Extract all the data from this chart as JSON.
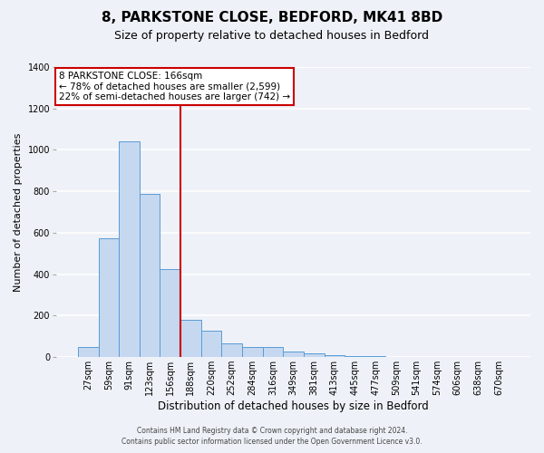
{
  "title": "8, PARKSTONE CLOSE, BEDFORD, MK41 8BD",
  "subtitle": "Size of property relative to detached houses in Bedford",
  "xlabel": "Distribution of detached houses by size in Bedford",
  "ylabel": "Number of detached properties",
  "bar_labels": [
    "27sqm",
    "59sqm",
    "91sqm",
    "123sqm",
    "156sqm",
    "188sqm",
    "220sqm",
    "252sqm",
    "284sqm",
    "316sqm",
    "349sqm",
    "381sqm",
    "413sqm",
    "445sqm",
    "477sqm",
    "509sqm",
    "541sqm",
    "574sqm",
    "606sqm",
    "638sqm",
    "670sqm"
  ],
  "bar_values": [
    50,
    575,
    1040,
    790,
    425,
    178,
    127,
    65,
    50,
    50,
    25,
    20,
    10,
    5,
    3,
    0,
    0,
    0,
    0,
    0,
    0
  ],
  "bar_color": "#c5d8f0",
  "bar_edge_color": "#5b9bd5",
  "vline_color": "#cc0000",
  "vline_pos": 4.5,
  "ylim": [
    0,
    1400
  ],
  "yticks": [
    0,
    200,
    400,
    600,
    800,
    1000,
    1200,
    1400
  ],
  "annotation_title": "8 PARKSTONE CLOSE: 166sqm",
  "annotation_line1": "← 78% of detached houses are smaller (2,599)",
  "annotation_line2": "22% of semi-detached houses are larger (742) →",
  "annotation_box_color": "#ffffff",
  "annotation_box_edge": "#cc0000",
  "footer_line1": "Contains HM Land Registry data © Crown copyright and database right 2024.",
  "footer_line2": "Contains public sector information licensed under the Open Government Licence v3.0.",
  "background_color": "#eef2f8",
  "grid_color": "#ffffff",
  "title_fontsize": 11,
  "subtitle_fontsize": 9,
  "ylabel_fontsize": 8,
  "xlabel_fontsize": 8.5,
  "tick_fontsize": 7,
  "annotation_fontsize": 7.5,
  "footer_fontsize": 5.5
}
